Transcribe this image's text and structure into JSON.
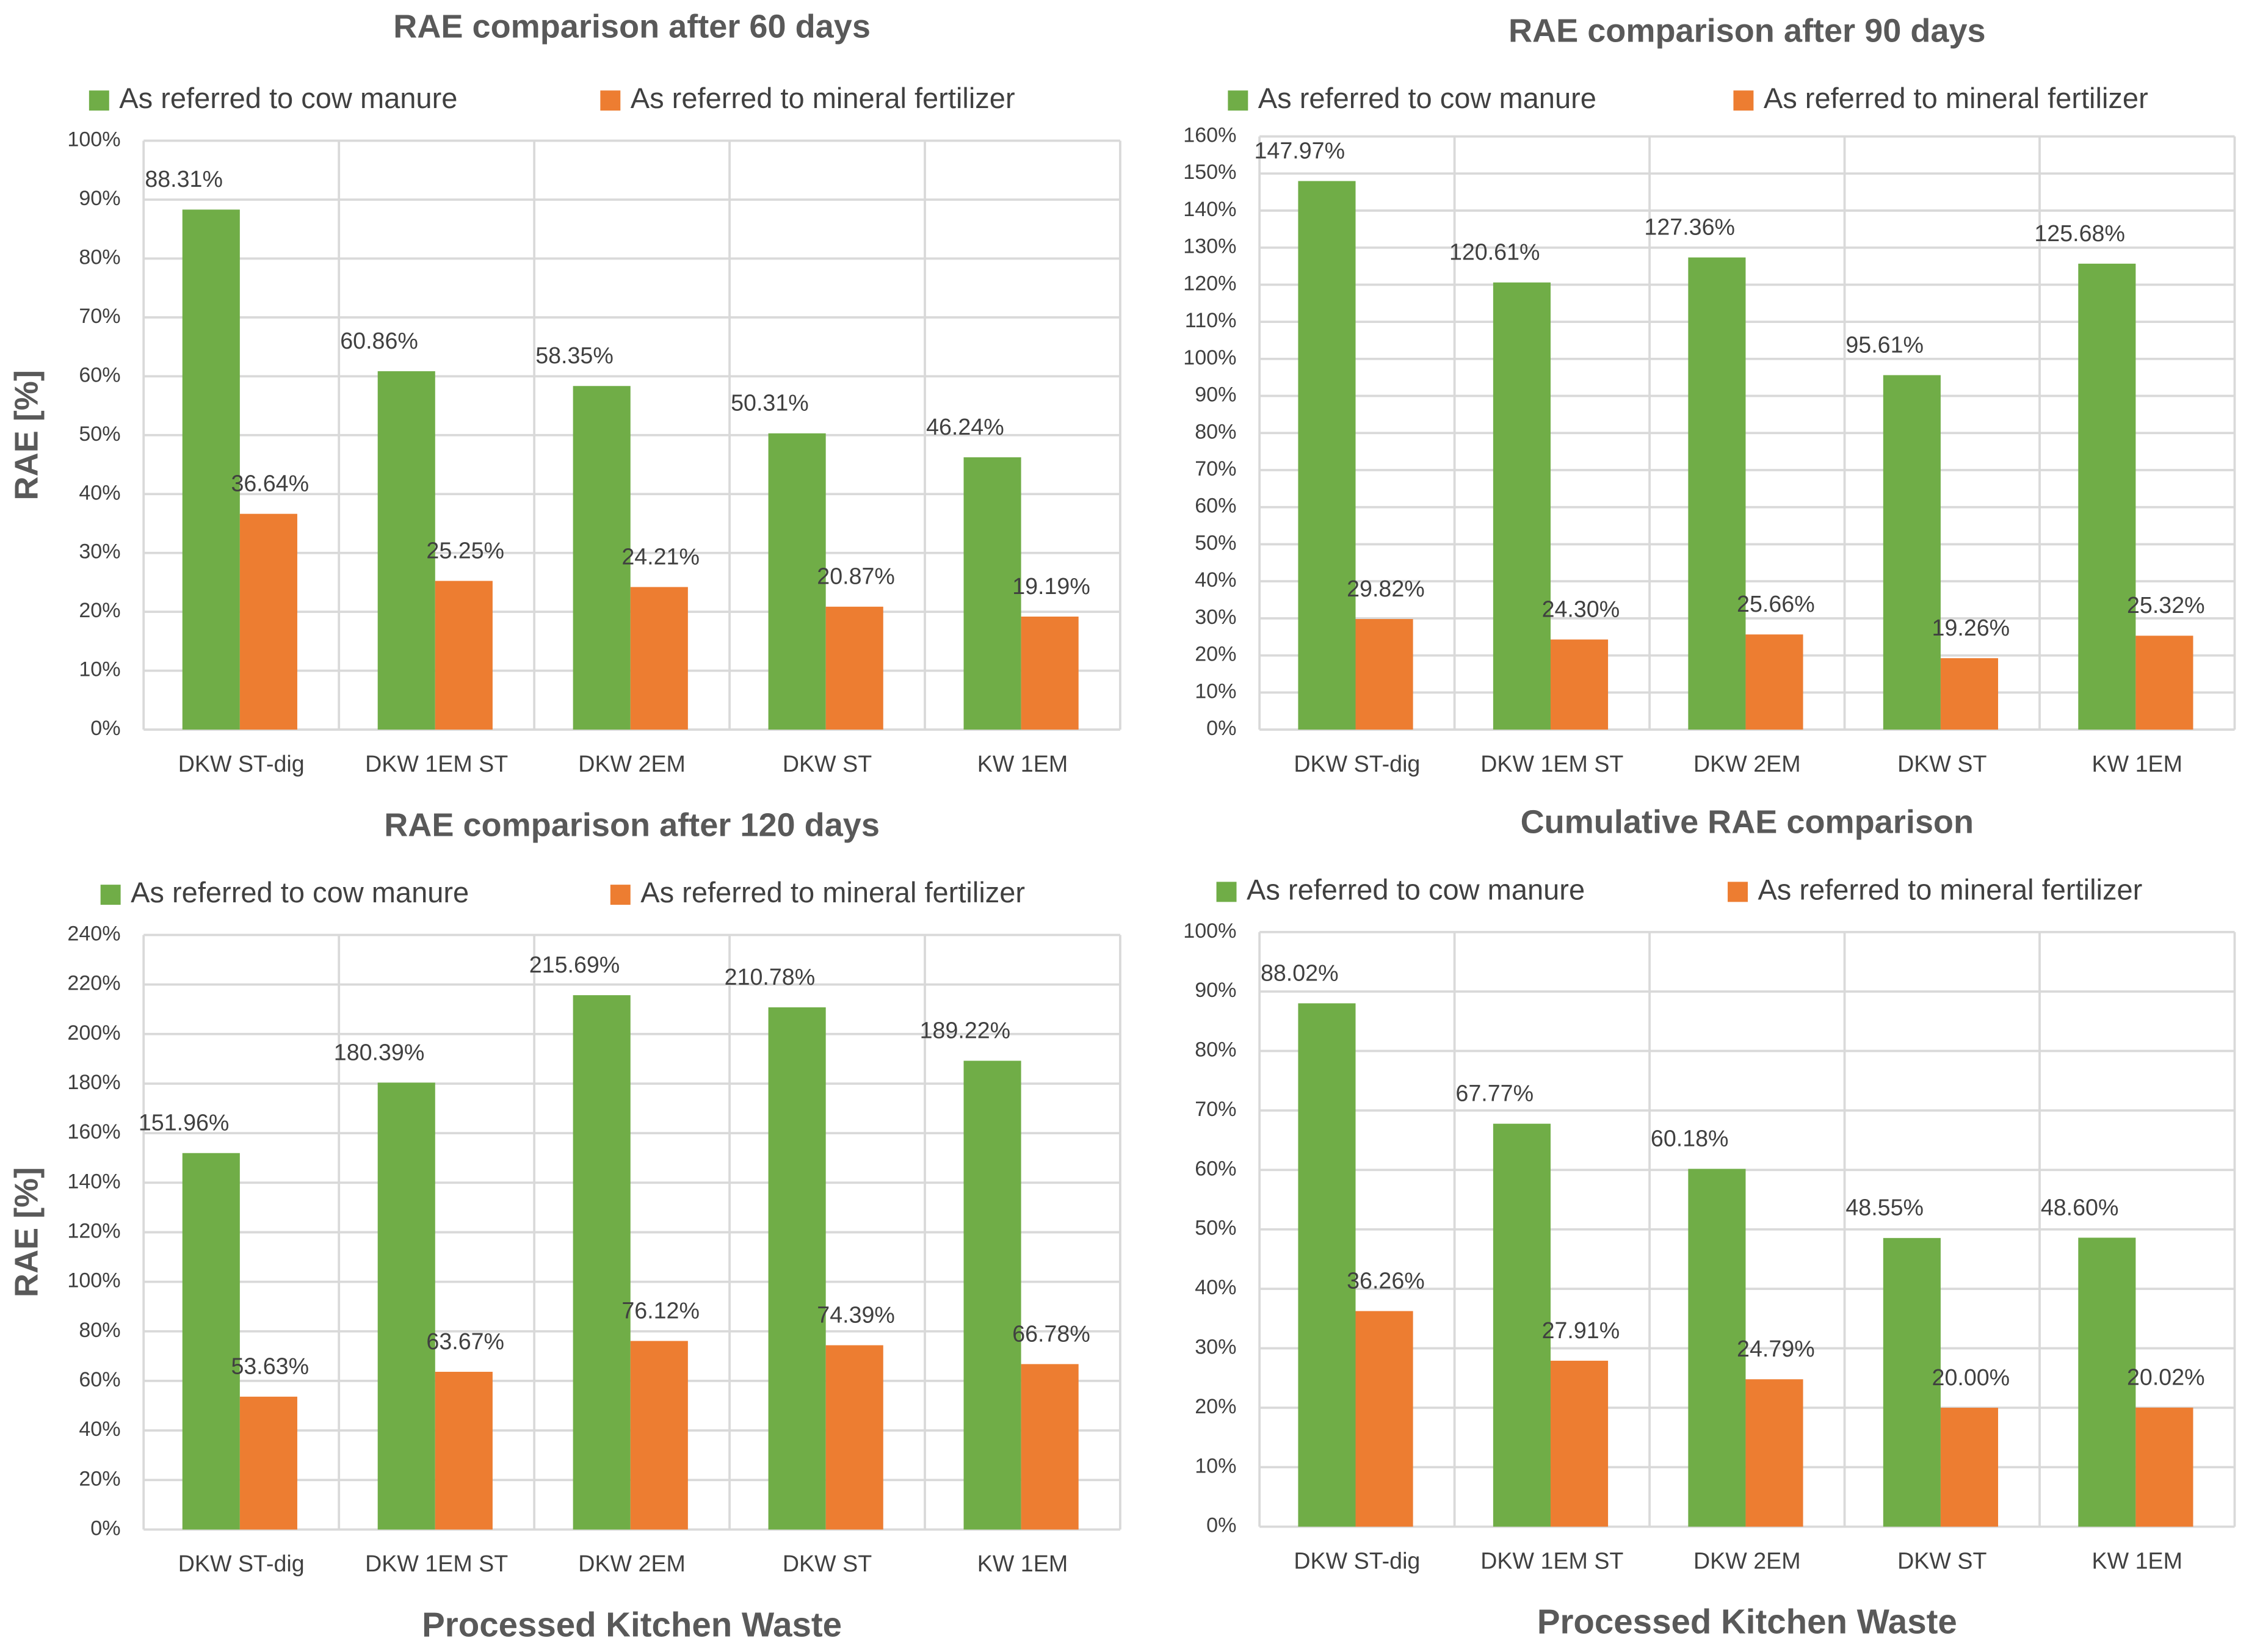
{
  "colors": {
    "cow": "#70ad47",
    "mineral": "#ed7d31",
    "grid": "#d9d9d9",
    "text": "#404040",
    "title": "#595959"
  },
  "chart_data": [
    {
      "type": "bar",
      "title": "RAE comparison after 60 days",
      "ylabel": "RAE [%]",
      "xlabel": "",
      "ylim": [
        0,
        100
      ],
      "yticks": [
        "0%",
        "10%",
        "20%",
        "30%",
        "40%",
        "50%",
        "60%",
        "70%",
        "80%",
        "90%",
        "100%"
      ],
      "categories": [
        "DKW ST-dig",
        "DKW 1EM ST",
        "DKW 2EM",
        "DKW ST",
        "KW 1EM"
      ],
      "legend_position": "top",
      "series": [
        {
          "name": "As referred to cow manure",
          "values": [
            88.31,
            60.86,
            58.35,
            50.31,
            46.24
          ],
          "labels": [
            "88.31%",
            "60.86%",
            "58.35%",
            "50.31%",
            "46.24%"
          ]
        },
        {
          "name": "As referred to mineral fertilizer",
          "values": [
            36.64,
            25.25,
            24.21,
            20.87,
            19.19
          ],
          "labels": [
            "36.64%",
            "25.25%",
            "24.21%",
            "20.87%",
            "19.19%"
          ]
        }
      ]
    },
    {
      "type": "bar",
      "title": "RAE comparison after 90 days",
      "ylabel": "",
      "xlabel": "",
      "ylim": [
        0,
        160
      ],
      "yticks": [
        "0%",
        "10%",
        "20%",
        "30%",
        "40%",
        "50%",
        "60%",
        "70%",
        "80%",
        "90%",
        "100%",
        "110%",
        "120%",
        "130%",
        "140%",
        "150%",
        "160%"
      ],
      "categories": [
        "DKW ST-dig",
        "DKW 1EM ST",
        "DKW 2EM",
        "DKW ST",
        "KW 1EM"
      ],
      "legend_position": "top",
      "series": [
        {
          "name": "As referred to cow manure",
          "values": [
            147.97,
            120.61,
            127.36,
            95.61,
            125.68
          ],
          "labels": [
            "147.97%",
            "120.61%",
            "127.36%",
            "95.61%",
            "125.68%"
          ]
        },
        {
          "name": "As referred to mineral fertilizer",
          "values": [
            29.82,
            24.3,
            25.66,
            19.26,
            25.32
          ],
          "labels": [
            "29.82%",
            "24.30%",
            "25.66%",
            "19.26%",
            "25.32%"
          ]
        }
      ]
    },
    {
      "type": "bar",
      "title": "RAE comparison after 120 days",
      "ylabel": "RAE [%]",
      "xlabel": "Processed Kitchen Waste",
      "ylim": [
        0,
        240
      ],
      "yticks": [
        "0%",
        "20%",
        "40%",
        "60%",
        "80%",
        "100%",
        "120%",
        "140%",
        "160%",
        "180%",
        "200%",
        "220%",
        "240%"
      ],
      "categories": [
        "DKW ST-dig",
        "DKW 1EM ST",
        "DKW 2EM",
        "DKW ST",
        "KW 1EM"
      ],
      "legend_position": "top",
      "series": [
        {
          "name": "As referred to cow manure",
          "values": [
            151.96,
            180.39,
            215.69,
            210.78,
            189.22
          ],
          "labels": [
            "151.96%",
            "180.39%",
            "215.69%",
            "210.78%",
            "189.22%"
          ]
        },
        {
          "name": "As referred to mineral fertilizer",
          "values": [
            53.63,
            63.67,
            76.12,
            74.39,
            66.78
          ],
          "labels": [
            "53.63%",
            "63.67%",
            "76.12%",
            "74.39%",
            "66.78%"
          ]
        }
      ]
    },
    {
      "type": "bar",
      "title": "Cumulative RAE comparison",
      "ylabel": "",
      "xlabel": "Processed Kitchen Waste",
      "ylim": [
        0,
        100
      ],
      "yticks": [
        "0%",
        "10%",
        "20%",
        "30%",
        "40%",
        "50%",
        "60%",
        "70%",
        "80%",
        "90%",
        "100%"
      ],
      "categories": [
        "DKW ST-dig",
        "DKW 1EM ST",
        "DKW 2EM",
        "DKW ST",
        "KW 1EM"
      ],
      "legend_position": "top",
      "series": [
        {
          "name": "As referred to cow manure",
          "values": [
            88.02,
            67.77,
            60.18,
            48.55,
            48.6
          ],
          "labels": [
            "88.02%",
            "67.77%",
            "60.18%",
            "48.55%",
            "48.60%"
          ]
        },
        {
          "name": "As referred to mineral fertilizer",
          "values": [
            36.26,
            27.91,
            24.79,
            20.0,
            20.02
          ],
          "labels": [
            "36.26%",
            "27.91%",
            "24.79%",
            "20.00%",
            "20.02%"
          ]
        }
      ]
    }
  ]
}
